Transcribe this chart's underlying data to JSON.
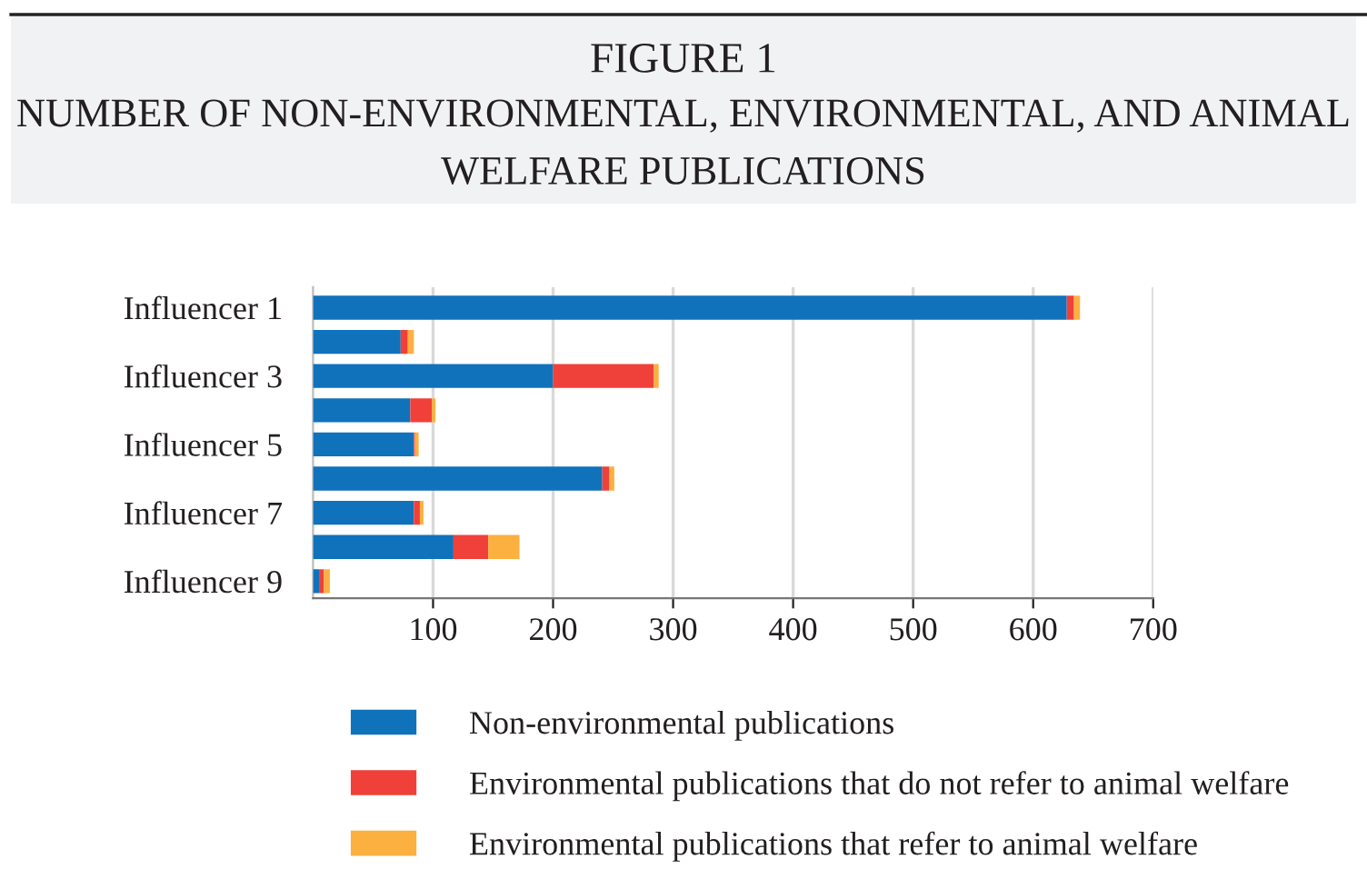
{
  "chart_data": {
    "type": "bar",
    "orientation": "horizontal",
    "stacked": true,
    "title": "FIGURE 1",
    "subtitle": "NUMBER OF NON-ENVIRONMENTAL, ENVIRONMENTAL, AND ANIMAL WELFARE PUBLICATIONS",
    "categories": [
      "Influencer 1",
      null,
      "Influencer 3",
      null,
      "Influencer 5",
      null,
      "Influencer 7",
      null,
      "Influencer 9"
    ],
    "series": [
      {
        "name": "Non-environmental publications",
        "color": "#1072bb",
        "values": [
          628,
          73,
          200,
          81,
          84,
          241,
          84,
          117,
          5
        ]
      },
      {
        "name": "Environmental publications that do not refer to animal welfare",
        "color": "#f0403a",
        "values": [
          6,
          6,
          84,
          18,
          1,
          6,
          5,
          29,
          4
        ]
      },
      {
        "name": "Environmental publications that refer to animal welfare",
        "color": "#fbb040",
        "values": [
          5,
          5,
          4,
          3,
          3,
          4,
          3,
          26,
          5
        ]
      }
    ],
    "xlim": [
      0,
      700
    ],
    "xticks": [
      100,
      200,
      300,
      400,
      500,
      600,
      700
    ],
    "grid": "x",
    "legend": "bottom"
  }
}
